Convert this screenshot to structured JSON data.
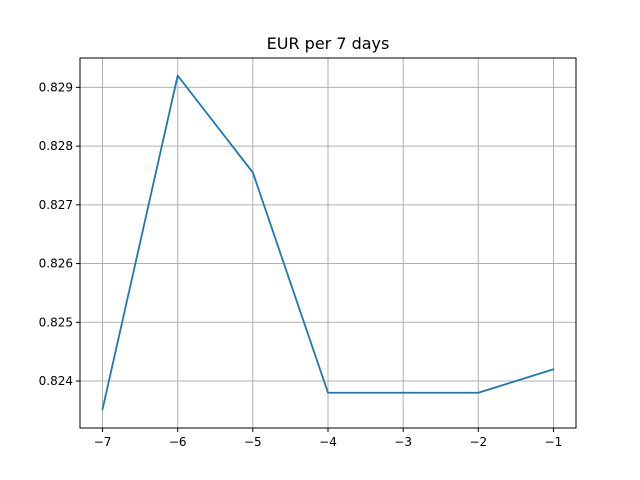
{
  "chart_data": {
    "type": "line",
    "title": "EUR per 7 days",
    "xlabel": "",
    "ylabel": "",
    "x": [
      -7,
      -6,
      -5,
      -4,
      -3,
      -2,
      -1
    ],
    "series": [
      {
        "values": [
          0.82352,
          0.8292,
          0.82755,
          0.8238,
          0.8238,
          0.8238,
          0.8242
        ],
        "color": "#1f77b4"
      }
    ],
    "xlim": [
      -7.3,
      -0.7
    ],
    "ylim": [
      0.8232,
      0.8295
    ],
    "xticks": [
      -7,
      -6,
      -5,
      -4,
      -3,
      -2,
      -1
    ],
    "xtick_labels": [
      "−7",
      "−6",
      "−5",
      "−4",
      "−3",
      "−2",
      "−1"
    ],
    "yticks": [
      0.824,
      0.825,
      0.826,
      0.827,
      0.828,
      0.829
    ],
    "ytick_labels": [
      "0.824",
      "0.825",
      "0.826",
      "0.827",
      "0.828",
      "0.829"
    ],
    "grid": true,
    "legend": false
  }
}
